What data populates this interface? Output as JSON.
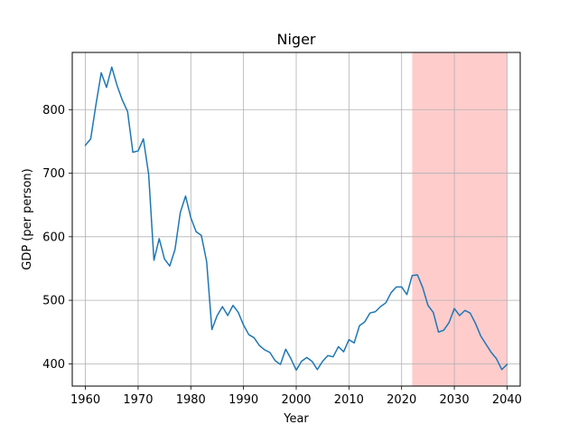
{
  "chart_data": {
    "type": "line",
    "title": "Niger",
    "xlabel": "Year",
    "ylabel": "GDP (per person)",
    "xlim": [
      1957.5,
      2042.5
    ],
    "ylim": [
      365,
      890
    ],
    "x_ticks": [
      1960,
      1970,
      1980,
      1990,
      2000,
      2010,
      2020,
      2030,
      2040
    ],
    "y_ticks": [
      400,
      500,
      600,
      700,
      800
    ],
    "x_tick_labels": [
      "1960",
      "1970",
      "1980",
      "1990",
      "2000",
      "2010",
      "2020",
      "2030",
      "2040"
    ],
    "y_tick_labels": [
      "400",
      "500",
      "600",
      "700",
      "800"
    ],
    "grid": true,
    "line_color": "#1f77b4",
    "highlight": {
      "x_start": 2022,
      "x_end": 2040,
      "color": "#ff9999",
      "alpha": 0.5
    },
    "series": [
      {
        "x": [
          1960,
          1961,
          1962,
          1963,
          1964,
          1965,
          1966,
          1967,
          1968,
          1969,
          1970,
          1971,
          1972,
          1973,
          1974,
          1975,
          1976,
          1977,
          1978,
          1979,
          1980,
          1981,
          1982,
          1983,
          1984,
          1985,
          1986,
          1987,
          1988,
          1989,
          1990,
          1991,
          1992,
          1993,
          1994,
          1995,
          1996,
          1997,
          1998,
          1999,
          2000,
          2001,
          2002,
          2003,
          2004,
          2005,
          2006,
          2007,
          2008,
          2009,
          2010,
          2011,
          2012,
          2013,
          2014,
          2015,
          2016,
          2017,
          2018,
          2019,
          2020,
          2021,
          2022,
          2023,
          2024,
          2025,
          2026,
          2027,
          2028,
          2029,
          2030,
          2031,
          2032,
          2033,
          2034,
          2035,
          2036,
          2037,
          2038,
          2039,
          2040
        ],
        "y": [
          744,
          754,
          808,
          858,
          835,
          867,
          838,
          815,
          797,
          733,
          735,
          754,
          698,
          563,
          597,
          565,
          554,
          580,
          638,
          664,
          630,
          608,
          602,
          561,
          454,
          476,
          490,
          476,
          492,
          481,
          461,
          446,
          441,
          429,
          422,
          418,
          405,
          399,
          423,
          408,
          390,
          404,
          410,
          404,
          391,
          404,
          413,
          411,
          427,
          419,
          438,
          433,
          460,
          466,
          480,
          482,
          490,
          496,
          512,
          521,
          521,
          509,
          539,
          540,
          520,
          492,
          481,
          450,
          453,
          465,
          487,
          476,
          484,
          480,
          464,
          444,
          431,
          418,
          408,
          391,
          399
        ]
      }
    ]
  }
}
